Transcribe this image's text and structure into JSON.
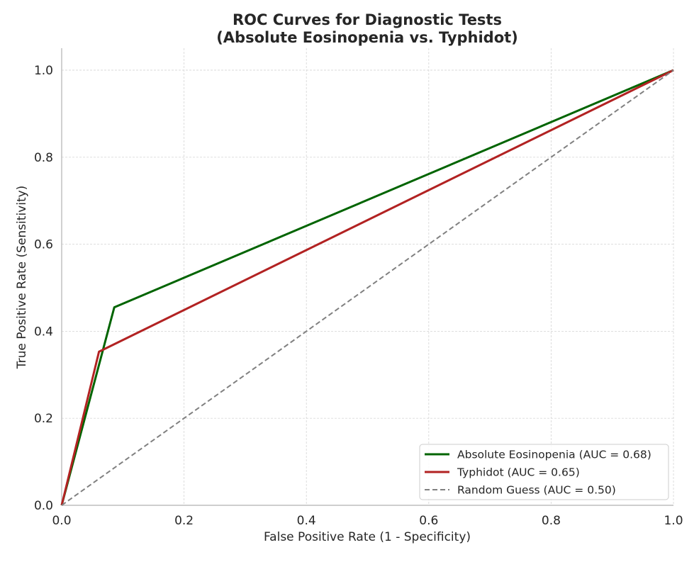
{
  "chart_data": {
    "type": "line",
    "title_lines": [
      "ROC Curves for Diagnostic Tests",
      "(Absolute Eosinopenia vs. Typhidot)"
    ],
    "xlabel": "False Positive Rate (1 - Specificity)",
    "ylabel": "True Positive Rate (Sensitivity)",
    "xlim": [
      0.0,
      1.0
    ],
    "ylim": [
      0.0,
      1.05
    ],
    "x_ticks": [
      0.0,
      0.2,
      0.4,
      0.6,
      0.8,
      1.0
    ],
    "y_ticks": [
      0.0,
      0.2,
      0.4,
      0.6,
      0.8,
      1.0
    ],
    "x_tick_labels": [
      "0.0",
      "0.2",
      "0.4",
      "0.6",
      "0.8",
      "1.0"
    ],
    "y_tick_labels": [
      "0.0",
      "0.2",
      "0.4",
      "0.6",
      "0.8",
      "1.0"
    ],
    "grid": true,
    "legend_position": "lower-right",
    "series": [
      {
        "name": "Absolute Eosinopenia (AUC = 0.68)",
        "color": "#006400",
        "style": "solid",
        "points": [
          [
            0.0,
            0.0
          ],
          [
            0.086,
            0.455
          ],
          [
            1.0,
            1.0
          ]
        ]
      },
      {
        "name": "Typhidot (AUC = 0.65)",
        "color": "#b22222",
        "style": "solid",
        "points": [
          [
            0.0,
            0.0
          ],
          [
            0.061,
            0.353
          ],
          [
            1.0,
            1.0
          ]
        ]
      },
      {
        "name": "Random Guess (AUC = 0.50)",
        "color": "#808080",
        "style": "dashed",
        "points": [
          [
            0.0,
            0.0
          ],
          [
            1.0,
            1.0
          ]
        ]
      }
    ]
  }
}
